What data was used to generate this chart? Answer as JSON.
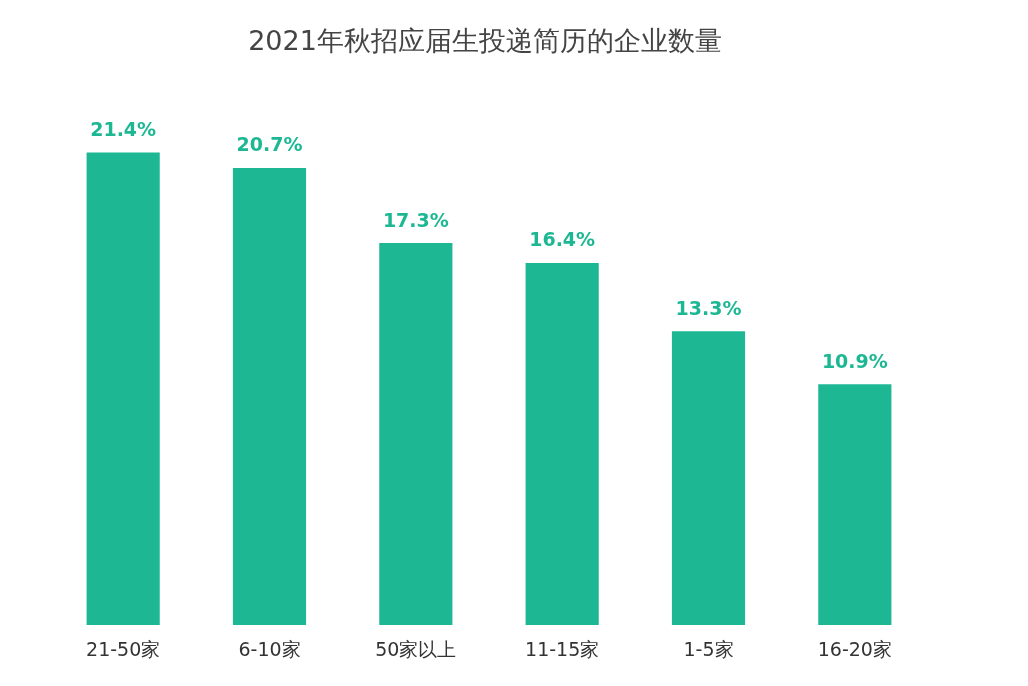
{
  "chart_data": {
    "type": "bar",
    "title": "2021年秋招应届生投递简历的企业数量",
    "categories": [
      "21-50家",
      "6-10家",
      "50家以上",
      "11-15家",
      "1-5家",
      "16-20家"
    ],
    "values": [
      21.4,
      20.7,
      17.3,
      16.4,
      13.3,
      10.9
    ],
    "value_labels": [
      "21.4%",
      "20.7%",
      "17.3%",
      "16.4%",
      "13.3%",
      "10.9%"
    ],
    "color": "#1db893"
  }
}
